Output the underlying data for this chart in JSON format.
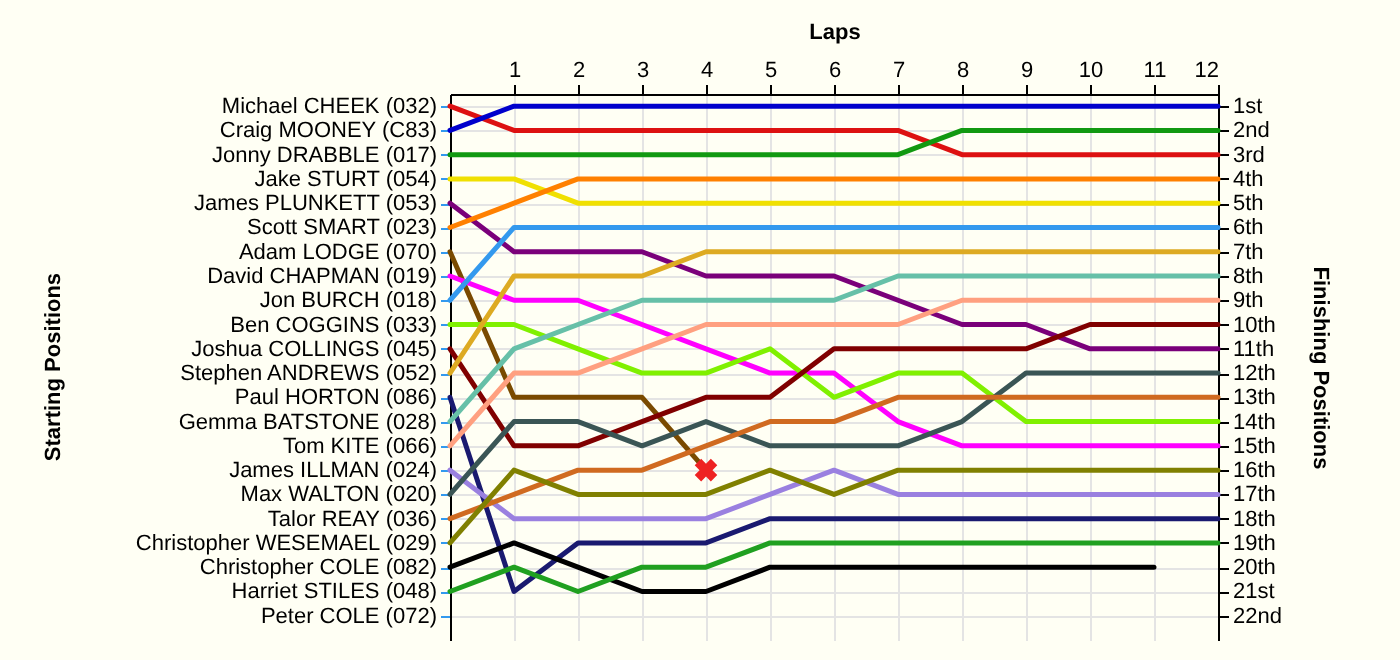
{
  "chart_data": {
    "type": "line",
    "xlabel": "Laps",
    "annotations": [
      "Starting Positions"
    ],
    "y2label": "Finishing Positions",
    "x": [
      0,
      1,
      2,
      3,
      4,
      5,
      6,
      7,
      8,
      9,
      10,
      11,
      12
    ],
    "xlim": [
      0,
      12
    ],
    "xticks": [
      1,
      2,
      3,
      4,
      5,
      6,
      7,
      8,
      9,
      10,
      11,
      12
    ],
    "y_categories": [
      "Michael CHEEK (032)",
      "Craig MOONEY (C83)",
      "Jonny DRABBLE (017)",
      "Jake STURT (054)",
      "James PLUNKETT (053)",
      "Scott SMART (023)",
      "Adam LODGE (070)",
      "David CHAPMAN (019)",
      "Jon BURCH (018)",
      "Ben COGGINS (033)",
      "Joshua COLLINGS (045)",
      "Stephen ANDREWS (052)",
      "Paul HORTON (086)",
      "Gemma BATSTONE (028)",
      "Tom KITE (066)",
      "James ILLMAN (024)",
      "Max WALTON (020)",
      "Talor REAY (036)",
      "Christopher WESEMAEL (029)",
      "Christopher COLE (082)",
      "Harriet STILES (048)",
      "Peter COLE (072)"
    ],
    "y2lim": [
      23,
      0.5
    ],
    "y2ticks": [
      {
        "value": 1,
        "label": "1st"
      },
      {
        "value": 2,
        "label": "2nd"
      },
      {
        "value": 3,
        "label": "3rd"
      },
      {
        "value": 4,
        "label": "4th"
      },
      {
        "value": 5,
        "label": "5th"
      },
      {
        "value": 6,
        "label": "6th"
      },
      {
        "value": 7,
        "label": "7th"
      },
      {
        "value": 8,
        "label": "8th"
      },
      {
        "value": 9,
        "label": "9th"
      },
      {
        "value": 10,
        "label": "10th"
      },
      {
        "value": 11,
        "label": "11th"
      },
      {
        "value": 12,
        "label": "12th"
      },
      {
        "value": 13,
        "label": "13th"
      },
      {
        "value": 14,
        "label": "14th"
      },
      {
        "value": 15,
        "label": "15th"
      },
      {
        "value": 16,
        "label": "16th"
      },
      {
        "value": 17,
        "label": "17th"
      },
      {
        "value": 18,
        "label": "18th"
      },
      {
        "value": 19,
        "label": "19th"
      },
      {
        "value": 20,
        "label": "20th"
      },
      {
        "value": 21,
        "label": "21st"
      },
      {
        "value": 22,
        "label": "22nd"
      }
    ],
    "grid": true,
    "marker": "none",
    "line_style": "solid",
    "series": [
      {
        "axis": "y2",
        "color": "#dd1111",
        "values": [
          1,
          2,
          2,
          2,
          2,
          2,
          2,
          2,
          3,
          3,
          3,
          3,
          3
        ]
      },
      {
        "axis": "y2",
        "color": "#0000cc",
        "values": [
          2,
          1,
          1,
          1,
          1,
          1,
          1,
          1,
          1,
          1,
          1,
          1,
          1
        ]
      },
      {
        "axis": "y2",
        "color": "#119911",
        "values": [
          3,
          3,
          3,
          3,
          3,
          3,
          3,
          3,
          2,
          2,
          2,
          2,
          2
        ]
      },
      {
        "axis": "y2",
        "color": "#f0e000",
        "values": [
          4,
          4,
          5,
          5,
          5,
          5,
          5,
          5,
          5,
          5,
          5,
          5,
          5
        ]
      },
      {
        "axis": "y2",
        "color": "#7a007a",
        "values": [
          5,
          7,
          7,
          7,
          8,
          8,
          8,
          9,
          10,
          10,
          11,
          11,
          11
        ]
      },
      {
        "axis": "y2",
        "color": "#ff8000",
        "values": [
          6,
          5,
          4,
          4,
          4,
          4,
          4,
          4,
          4,
          4,
          4,
          4,
          4
        ]
      },
      {
        "axis": "y2",
        "color": "#7a4a00",
        "values": [
          7,
          13,
          13,
          13,
          16,
          null,
          null,
          null,
          null,
          null,
          null,
          null,
          null
        ]
      },
      {
        "axis": "y2",
        "color": "#ff00ff",
        "values": [
          8,
          9,
          9,
          10,
          11,
          12,
          12,
          14,
          15,
          15,
          15,
          15,
          15
        ]
      },
      {
        "axis": "y2",
        "color": "#3399ee",
        "values": [
          9,
          6,
          6,
          6,
          6,
          6,
          6,
          6,
          6,
          6,
          6,
          6,
          6
        ]
      },
      {
        "axis": "y2",
        "color": "#80f000",
        "values": [
          10,
          10,
          11,
          12,
          12,
          11,
          13,
          12,
          12,
          14,
          14,
          14,
          14
        ]
      },
      {
        "axis": "y2",
        "color": "#800000",
        "values": [
          11,
          15,
          15,
          14,
          13,
          13,
          11,
          11,
          11,
          11,
          10,
          10,
          10
        ]
      },
      {
        "axis": "y2",
        "color": "#ddaa22",
        "values": [
          12,
          8,
          8,
          8,
          7,
          7,
          7,
          7,
          7,
          7,
          7,
          7,
          7
        ]
      },
      {
        "axis": "y2",
        "color": "#1a1a70",
        "values": [
          13,
          21,
          19,
          19,
          19,
          18,
          18,
          18,
          18,
          18,
          18,
          18,
          18
        ]
      },
      {
        "axis": "y2",
        "color": "#66c0a8",
        "values": [
          14,
          11,
          10,
          9,
          9,
          9,
          9,
          8,
          8,
          8,
          8,
          8,
          8
        ]
      },
      {
        "axis": "y2",
        "color": "#ffa080",
        "values": [
          15,
          12,
          12,
          11,
          10,
          10,
          10,
          10,
          9,
          9,
          9,
          9,
          9
        ]
      },
      {
        "axis": "y2",
        "color": "#9a80e0",
        "values": [
          16,
          18,
          18,
          18,
          18,
          17,
          16,
          17,
          17,
          17,
          17,
          17,
          17
        ]
      },
      {
        "axis": "y2",
        "color": "#3a5555",
        "values": [
          17,
          14,
          14,
          15,
          14,
          15,
          15,
          15,
          14,
          12,
          12,
          12,
          12
        ]
      },
      {
        "axis": "y2",
        "color": "#d06a20",
        "values": [
          18,
          17,
          16,
          16,
          15,
          14,
          14,
          13,
          13,
          13,
          13,
          13,
          13
        ]
      },
      {
        "axis": "y2",
        "color": "#808000",
        "values": [
          19,
          16,
          17,
          17,
          17,
          16,
          17,
          16,
          16,
          16,
          16,
          16,
          16
        ]
      },
      {
        "axis": "y2",
        "color": "#000000",
        "values": [
          20,
          19,
          20,
          21,
          21,
          20,
          20,
          20,
          20,
          20,
          20,
          20,
          null
        ]
      },
      {
        "axis": "y2",
        "color": "#20a020",
        "values": [
          21,
          20,
          21,
          20,
          20,
          19,
          19,
          19,
          19,
          19,
          19,
          19,
          19
        ]
      },
      {
        "axis": "y2",
        "type": "scatter",
        "marker": "cross",
        "color": "#ee2222",
        "x": [
          4
        ],
        "values": [
          16
        ]
      }
    ]
  }
}
